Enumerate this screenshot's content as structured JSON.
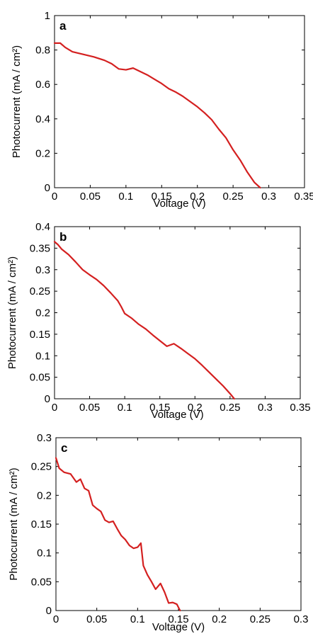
{
  "chart_data": [
    {
      "type": "line",
      "panel_label": "a",
      "xlabel": "Voltage (V)",
      "ylabel": "Photocurrent (mA / cm²)",
      "xlim": [
        0,
        0.35
      ],
      "ylim": [
        0,
        1
      ],
      "xticks": [
        0,
        0.05,
        0.1,
        0.15,
        0.2,
        0.25,
        0.3,
        0.35
      ],
      "xtick_labels": [
        "0",
        "0.05",
        "0.1",
        "0.15",
        "0.2",
        "0.25",
        "0.3",
        "0.35"
      ],
      "yticks": [
        0,
        0.2,
        0.4,
        0.6,
        0.8,
        1
      ],
      "ytick_labels": [
        "0",
        "0.2",
        "0.4",
        "0.6",
        "0.8",
        "1"
      ],
      "color": "#d42020",
      "grid": false,
      "x": [
        0,
        0.008,
        0.015,
        0.025,
        0.04,
        0.055,
        0.07,
        0.08,
        0.09,
        0.1,
        0.11,
        0.12,
        0.13,
        0.14,
        0.15,
        0.16,
        0.17,
        0.18,
        0.19,
        0.2,
        0.21,
        0.22,
        0.23,
        0.24,
        0.25,
        0.26,
        0.27,
        0.28,
        0.288
      ],
      "y": [
        0.84,
        0.84,
        0.815,
        0.79,
        0.775,
        0.76,
        0.74,
        0.72,
        0.69,
        0.685,
        0.695,
        0.675,
        0.655,
        0.63,
        0.605,
        0.575,
        0.555,
        0.53,
        0.5,
        0.47,
        0.435,
        0.395,
        0.34,
        0.29,
        0.22,
        0.16,
        0.09,
        0.03,
        0
      ]
    },
    {
      "type": "line",
      "panel_label": "b",
      "xlabel": "Voltage (V)",
      "ylabel": "Photocurrent (mA / cm²)",
      "xlim": [
        0,
        0.35
      ],
      "ylim": [
        0,
        0.4
      ],
      "xticks": [
        0,
        0.05,
        0.1,
        0.15,
        0.2,
        0.25,
        0.3,
        0.35
      ],
      "xtick_labels": [
        "0",
        "0.05",
        "0.1",
        "0.15",
        "0.2",
        "0.25",
        "0.3",
        "0.35"
      ],
      "yticks": [
        0,
        0.05,
        0.1,
        0.15,
        0.2,
        0.25,
        0.3,
        0.35,
        0.4
      ],
      "ytick_labels": [
        "0",
        "0.05",
        "0.1",
        "0.15",
        "0.2",
        "0.25",
        "0.3",
        "0.35",
        "0.4"
      ],
      "color": "#d42020",
      "grid": false,
      "x": [
        0,
        0.005,
        0.01,
        0.02,
        0.03,
        0.04,
        0.05,
        0.06,
        0.07,
        0.08,
        0.09,
        0.095,
        0.1,
        0.11,
        0.12,
        0.13,
        0.14,
        0.15,
        0.16,
        0.17,
        0.18,
        0.19,
        0.2,
        0.21,
        0.22,
        0.23,
        0.24,
        0.25,
        0.256
      ],
      "y": [
        0.365,
        0.358,
        0.348,
        0.335,
        0.318,
        0.3,
        0.288,
        0.277,
        0.263,
        0.246,
        0.228,
        0.214,
        0.198,
        0.187,
        0.173,
        0.162,
        0.148,
        0.135,
        0.122,
        0.128,
        0.117,
        0.105,
        0.093,
        0.078,
        0.062,
        0.046,
        0.03,
        0.012,
        0
      ]
    },
    {
      "type": "line",
      "panel_label": "c",
      "xlabel": "Voltage (V)",
      "ylabel": "Photocurrent (mA / cm²)",
      "xlim": [
        0,
        0.3
      ],
      "ylim": [
        0,
        0.3
      ],
      "xticks": [
        0,
        0.05,
        0.1,
        0.15,
        0.2,
        0.25,
        0.3
      ],
      "xtick_labels": [
        "0",
        "0.05",
        "0.1",
        "0.15",
        "0.2",
        "0.25",
        "0.3"
      ],
      "yticks": [
        0,
        0.05,
        0.1,
        0.15,
        0.2,
        0.25,
        0.3
      ],
      "ytick_labels": [
        "0",
        "0.05",
        "0.1",
        "0.15",
        "0.2",
        "0.25",
        "0.3"
      ],
      "color": "#d42020",
      "grid": false,
      "x": [
        0,
        0.004,
        0.01,
        0.018,
        0.025,
        0.03,
        0.035,
        0.04,
        0.045,
        0.05,
        0.055,
        0.06,
        0.065,
        0.07,
        0.075,
        0.08,
        0.085,
        0.09,
        0.095,
        0.1,
        0.104,
        0.107,
        0.112,
        0.117,
        0.122,
        0.128,
        0.133,
        0.138,
        0.143,
        0.148,
        0.152
      ],
      "y": [
        0.265,
        0.247,
        0.24,
        0.237,
        0.223,
        0.228,
        0.212,
        0.208,
        0.183,
        0.177,
        0.172,
        0.157,
        0.153,
        0.155,
        0.142,
        0.13,
        0.123,
        0.113,
        0.108,
        0.11,
        0.117,
        0.078,
        0.062,
        0.05,
        0.037,
        0.047,
        0.032,
        0.013,
        0.014,
        0.011,
        0
      ]
    }
  ]
}
